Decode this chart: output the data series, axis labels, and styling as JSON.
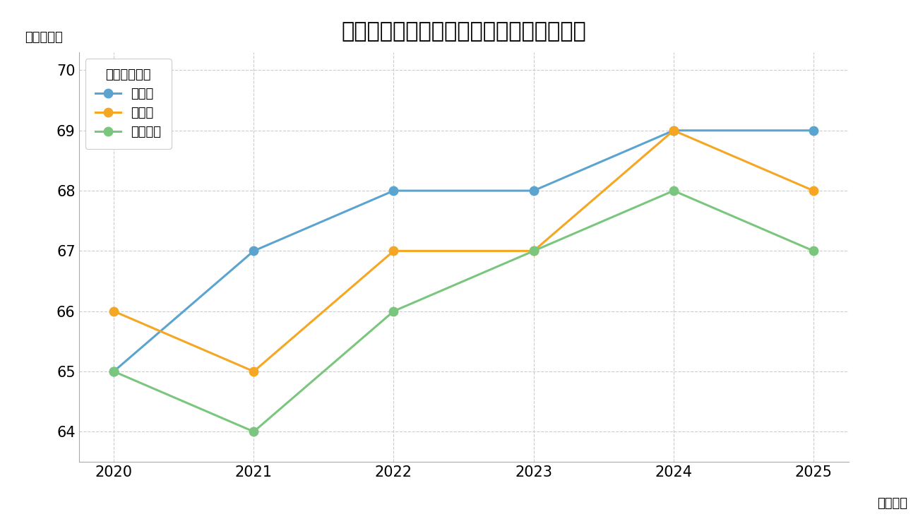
{
  "title": "学力推移と全国・市平均との比較（数学）",
  "ylabel": "（スコア）",
  "xlabel_suffix": "（年度）",
  "legend_title": "データソース",
  "years": [
    2020,
    2021,
    2022,
    2023,
    2024,
    2025
  ],
  "series": [
    {
      "label": "当該校",
      "values": [
        65,
        67,
        68,
        68,
        69,
        69
      ],
      "color": "#5BA4CF",
      "marker": "o"
    },
    {
      "label": "市平均",
      "values": [
        66,
        65,
        67,
        67,
        69,
        68
      ],
      "color": "#F5A623",
      "marker": "o"
    },
    {
      "label": "全国平均",
      "values": [
        65,
        64,
        66,
        67,
        68,
        67
      ],
      "color": "#7BC67E",
      "marker": "o"
    }
  ],
  "ylim": [
    63.5,
    70.3
  ],
  "yticks": [
    64,
    65,
    66,
    67,
    68,
    69,
    70
  ],
  "background_color": "#FFFFFF",
  "plot_bg_color": "#FFFFFF",
  "grid_color": "#CCCCCC",
  "title_fontsize": 22,
  "axis_label_fontsize": 13,
  "tick_fontsize": 15,
  "legend_fontsize": 13,
  "line_width": 2.2,
  "marker_size": 9
}
